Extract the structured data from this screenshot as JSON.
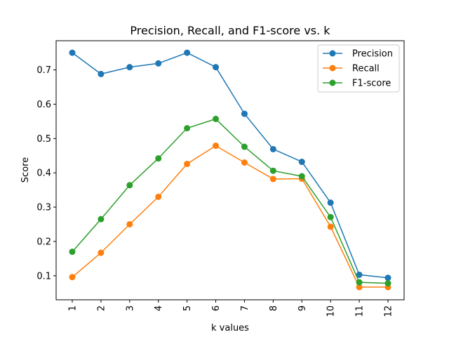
{
  "chart_data": {
    "type": "line",
    "title": "Precision, Recall, and F1-score vs. k",
    "xlabel": "k values",
    "ylabel": "Score",
    "categories": [
      "1",
      "2",
      "3",
      "4",
      "5",
      "6",
      "7",
      "8",
      "9",
      "10",
      "11",
      "12"
    ],
    "ylim": [
      0.03,
      0.785
    ],
    "yticks": [
      "0.1",
      "0.2",
      "0.3",
      "0.4",
      "0.5",
      "0.6",
      "0.7"
    ],
    "grid": false,
    "legend_position": "top-right",
    "series": [
      {
        "name": "Precision",
        "color": "#1f77b4",
        "values": [
          0.75,
          0.688,
          0.708,
          0.719,
          0.75,
          0.708,
          0.572,
          0.469,
          0.432,
          0.313,
          0.103,
          0.094
        ]
      },
      {
        "name": "Recall",
        "color": "#ff7f0e",
        "values": [
          0.096,
          0.167,
          0.25,
          0.33,
          0.426,
          0.479,
          0.43,
          0.382,
          0.383,
          0.243,
          0.067,
          0.067
        ]
      },
      {
        "name": "F1-score",
        "color": "#2ca02c",
        "values": [
          0.17,
          0.265,
          0.364,
          0.442,
          0.53,
          0.557,
          0.476,
          0.406,
          0.39,
          0.271,
          0.081,
          0.078
        ]
      }
    ]
  }
}
